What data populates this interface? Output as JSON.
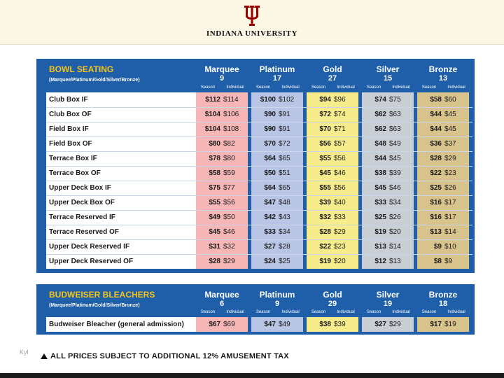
{
  "header": {
    "university": "INDIANA UNIVERSITY",
    "logo": "trident-logo"
  },
  "tiers": [
    {
      "name": "Marquee",
      "key": "marquee"
    },
    {
      "name": "Platinum",
      "key": "platinum"
    },
    {
      "name": "Gold",
      "key": "gold"
    },
    {
      "name": "Silver",
      "key": "silver"
    },
    {
      "name": "Bronze",
      "key": "bronze"
    }
  ],
  "price_labels": {
    "season": "Season",
    "individual": "Individual"
  },
  "bowl": {
    "title": "BOWL SEATING",
    "subtitle": "(Marquee/Platinum/Gold/Silver/Bronze)",
    "counts": [
      "9",
      "17",
      "27",
      "15",
      "13"
    ],
    "rows": [
      {
        "label": "Club Box IF",
        "prices": [
          [
            "$112",
            "$114"
          ],
          [
            "$100",
            "$102"
          ],
          [
            "$94",
            "$96"
          ],
          [
            "$74",
            "$75"
          ],
          [
            "$58",
            "$60"
          ]
        ]
      },
      {
        "label": "Club Box OF",
        "prices": [
          [
            "$104",
            "$106"
          ],
          [
            "$90",
            "$91"
          ],
          [
            "$72",
            "$74"
          ],
          [
            "$62",
            "$63"
          ],
          [
            "$44",
            "$45"
          ]
        ]
      },
      {
        "label": "Field Box IF",
        "prices": [
          [
            "$104",
            "$108"
          ],
          [
            "$90",
            "$91"
          ],
          [
            "$70",
            "$71"
          ],
          [
            "$62",
            "$63"
          ],
          [
            "$44",
            "$45"
          ]
        ]
      },
      {
        "label": "Field Box OF",
        "prices": [
          [
            "$80",
            "$82"
          ],
          [
            "$70",
            "$72"
          ],
          [
            "$56",
            "$57"
          ],
          [
            "$48",
            "$49"
          ],
          [
            "$36",
            "$37"
          ]
        ]
      },
      {
        "label": "Terrace Box IF",
        "prices": [
          [
            "$78",
            "$80"
          ],
          [
            "$64",
            "$65"
          ],
          [
            "$55",
            "$56"
          ],
          [
            "$44",
            "$45"
          ],
          [
            "$28",
            "$29"
          ]
        ]
      },
      {
        "label": "Terrace Box OF",
        "prices": [
          [
            "$58",
            "$59"
          ],
          [
            "$50",
            "$51"
          ],
          [
            "$45",
            "$46"
          ],
          [
            "$38",
            "$39"
          ],
          [
            "$22",
            "$23"
          ]
        ]
      },
      {
        "label": "Upper Deck Box IF",
        "prices": [
          [
            "$75",
            "$77"
          ],
          [
            "$64",
            "$65"
          ],
          [
            "$55",
            "$56"
          ],
          [
            "$45",
            "$46"
          ],
          [
            "$25",
            "$26"
          ]
        ]
      },
      {
        "label": "Upper Deck Box OF",
        "prices": [
          [
            "$55",
            "$56"
          ],
          [
            "$47",
            "$48"
          ],
          [
            "$39",
            "$40"
          ],
          [
            "$33",
            "$34"
          ],
          [
            "$16",
            "$17"
          ]
        ]
      },
      {
        "label": "Terrace Reserved IF",
        "prices": [
          [
            "$49",
            "$50"
          ],
          [
            "$42",
            "$43"
          ],
          [
            "$32",
            "$33"
          ],
          [
            "$25",
            "$26"
          ],
          [
            "$16",
            "$17"
          ]
        ]
      },
      {
        "label": "Terrace Reserved OF",
        "prices": [
          [
            "$45",
            "$46"
          ],
          [
            "$33",
            "$34"
          ],
          [
            "$28",
            "$29"
          ],
          [
            "$19",
            "$20"
          ],
          [
            "$13",
            "$14"
          ]
        ]
      },
      {
        "label": "Upper Deck Reserved IF",
        "prices": [
          [
            "$31",
            "$32"
          ],
          [
            "$27",
            "$28"
          ],
          [
            "$22",
            "$23"
          ],
          [
            "$13",
            "$14"
          ],
          [
            "$9",
            "$10"
          ]
        ]
      },
      {
        "label": "Upper Deck Reserved OF",
        "prices": [
          [
            "$28",
            "$29"
          ],
          [
            "$24",
            "$25"
          ],
          [
            "$19",
            "$20"
          ],
          [
            "$12",
            "$13"
          ],
          [
            "$8",
            "$9"
          ]
        ]
      }
    ]
  },
  "bleachers": {
    "title": "BUDWEISER BLEACHERS",
    "subtitle": "(Marquee/Platinum/Gold/Silver/Bronze)",
    "counts": [
      "6",
      "9",
      "29",
      "19",
      "18"
    ],
    "rows": [
      {
        "label": "Budweiser Bleacher (general admission)",
        "prices": [
          [
            "$67",
            "$69"
          ],
          [
            "$47",
            "$49"
          ],
          [
            "$38",
            "$39"
          ],
          [
            "$27",
            "$29"
          ],
          [
            "$17",
            "$19"
          ]
        ]
      }
    ]
  },
  "footer": {
    "corner_label": "Kyl",
    "tax_note": "ALL PRICES SUBJECT TO ADDITIONAL 12% AMUSEMENT TAX",
    "icon": "triangle-warning-icon"
  },
  "colors": {
    "panel": "#1f5ea8",
    "title": "#f5c518",
    "marquee": "#f6b6b6",
    "platinum": "#b8c5e4",
    "gold": "#f7ec8c",
    "silver": "#c9cdd4",
    "bronze": "#d8c38c"
  }
}
